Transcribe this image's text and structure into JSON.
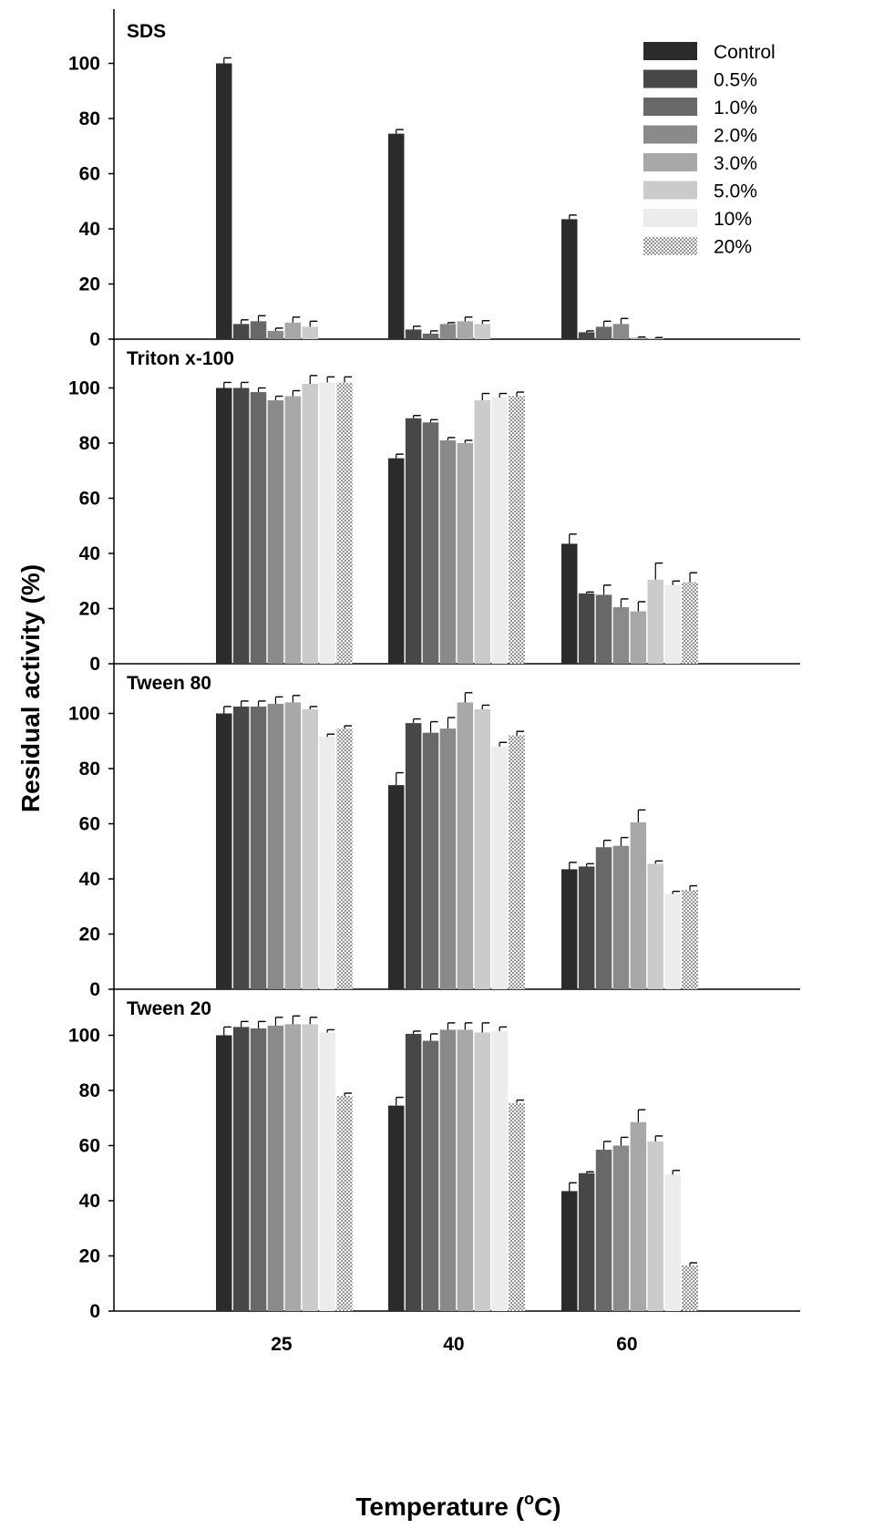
{
  "chart_data": {
    "type": "bar",
    "ylabel": "Residual activity (%)",
    "xlabel_main": "Temperature (",
    "xlabel_sup": "o",
    "xlabel_end": "C)",
    "categories": [
      "25",
      "40",
      "60"
    ],
    "ylim": [
      0,
      115
    ],
    "yticks": [
      0,
      20,
      40,
      60,
      80,
      100
    ],
    "legend_position": "top-right",
    "series_names": [
      "Control",
      "0.5%",
      "1.0%",
      "2.0%",
      "3.0%",
      "5.0%",
      "10%",
      "20%"
    ],
    "series_colors": [
      "#2b2b2b",
      "#474747",
      "#686868",
      "#8a8a8a",
      "#a8a8a8",
      "#cbcbcb",
      "#ececec",
      "dotted"
    ],
    "panels": [
      {
        "title": "SDS",
        "values": [
          [
            100,
            5.5,
            6.5,
            3,
            6,
            4.5,
            null,
            null
          ],
          [
            74.5,
            3.5,
            2,
            5.5,
            6.5,
            5.5,
            null,
            null
          ],
          [
            43.5,
            2.5,
            4.5,
            5.5,
            0.5,
            0.3,
            null,
            null
          ]
        ],
        "errors": [
          [
            2,
            1.5,
            2,
            1,
            2,
            2,
            null,
            null
          ],
          [
            1.5,
            1.2,
            1,
            0.5,
            1.5,
            1.2,
            null,
            null
          ],
          [
            1.5,
            0.5,
            2,
            2,
            0.3,
            0.3,
            null,
            null
          ]
        ]
      },
      {
        "title": "Triton x-100",
        "values": [
          [
            100,
            100,
            98.5,
            95.5,
            97,
            101.5,
            102,
            102
          ],
          [
            74.5,
            89,
            87.5,
            81,
            80,
            95.5,
            96.5,
            97
          ],
          [
            43.5,
            25.5,
            25,
            20.5,
            19,
            30.5,
            28.5,
            29.5
          ]
        ],
        "errors": [
          [
            2,
            2,
            1.5,
            1.5,
            2,
            3,
            2,
            2
          ],
          [
            1.5,
            1,
            1,
            1,
            1,
            2.5,
            1.5,
            1.5
          ],
          [
            3.5,
            0.5,
            3.5,
            3,
            3.5,
            6,
            1.5,
            3.5
          ]
        ]
      },
      {
        "title": "Tween 80",
        "values": [
          [
            100,
            102.5,
            102.5,
            103.5,
            104,
            101.5,
            91.5,
            94.5
          ],
          [
            74,
            96.5,
            93,
            94.5,
            104,
            101.5,
            88,
            92
          ],
          [
            43.5,
            44.5,
            51.5,
            52,
            60.5,
            45.5,
            34.5,
            36
          ]
        ],
        "errors": [
          [
            2.5,
            2,
            2,
            2.5,
            2.5,
            1,
            1,
            1
          ],
          [
            4.5,
            1.5,
            4,
            4,
            3.5,
            1.5,
            1.5,
            1.5
          ],
          [
            2.5,
            1,
            2.5,
            3,
            4.5,
            1,
            1,
            1.5
          ]
        ]
      },
      {
        "title": "Tween 20",
        "values": [
          [
            100,
            103,
            102.5,
            103.5,
            104,
            104,
            101,
            78
          ],
          [
            74.5,
            100.5,
            98,
            102,
            102,
            101,
            101.5,
            75.5
          ],
          [
            43.5,
            50,
            58.5,
            60,
            68.5,
            61.5,
            49.5,
            16.5
          ]
        ],
        "errors": [
          [
            3,
            2,
            2.5,
            3,
            3,
            2.5,
            1,
            1
          ],
          [
            3,
            1,
            2.5,
            2.5,
            2.5,
            3.5,
            1.5,
            1
          ],
          [
            3,
            0.5,
            3,
            3,
            4.5,
            2,
            1.5,
            1
          ]
        ]
      }
    ]
  }
}
